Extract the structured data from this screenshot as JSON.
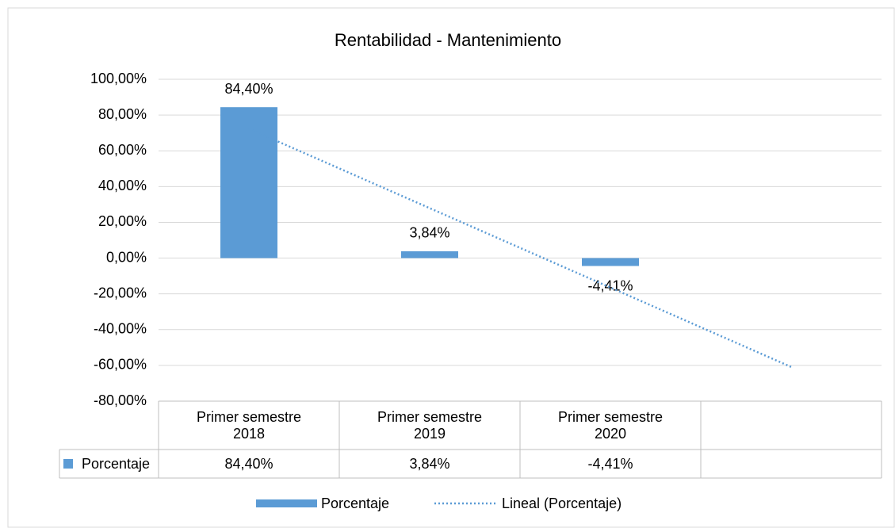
{
  "chart_data": {
    "type": "bar",
    "title": "Rentabilidad - Mantenimiento",
    "categories": [
      "Primer semestre 2018",
      "Primer semestre 2019",
      "Primer semestre 2020",
      null
    ],
    "series": [
      {
        "name": "Porcentaje",
        "color": "#5b9bd5",
        "values": [
          84.4,
          3.84,
          -4.41,
          null
        ],
        "value_labels": [
          "84,40%",
          "3,84%",
          "-4,41%",
          null
        ]
      }
    ],
    "trendline": {
      "name": "Lineal (Porcentaje)",
      "type": "linear",
      "color": "#5b9bd5"
    },
    "ylim": [
      -80,
      100
    ],
    "yticks": [
      {
        "value": -80,
        "label": "-80,00%"
      },
      {
        "value": -60,
        "label": "-60,00%"
      },
      {
        "value": -40,
        "label": "-40,00%"
      },
      {
        "value": -20,
        "label": "-20,00%"
      },
      {
        "value": 0,
        "label": "0,00%"
      },
      {
        "value": 20,
        "label": "20,00%"
      },
      {
        "value": 40,
        "label": "40,00%"
      },
      {
        "value": 60,
        "label": "60,00%"
      },
      {
        "value": 80,
        "label": "80,00%"
      },
      {
        "value": 100,
        "label": "100,00%"
      }
    ],
    "grid": true,
    "data_table": true,
    "legend": "bottom"
  }
}
